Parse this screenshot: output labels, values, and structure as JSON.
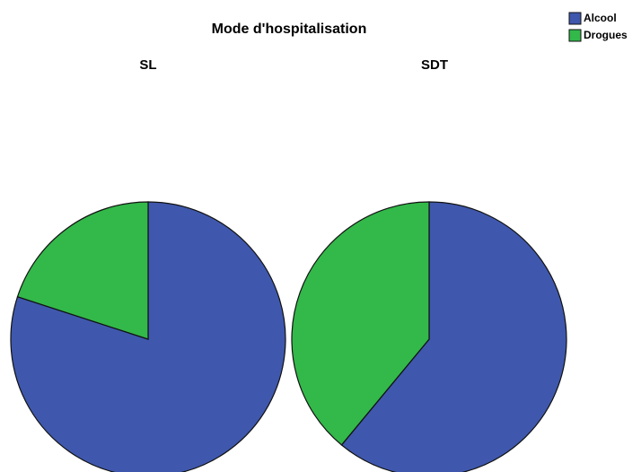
{
  "title": "Mode d'hospitalisation",
  "chart_data": [
    {
      "type": "pie",
      "title": "SL",
      "categories": [
        "Alcool",
        "Drogues"
      ],
      "values": [
        80,
        20
      ],
      "colors": [
        "#3f58ad",
        "#33b84a"
      ]
    },
    {
      "type": "pie",
      "title": "SDT",
      "categories": [
        "Alcool",
        "Drogues"
      ],
      "values": [
        61,
        39
      ],
      "colors": [
        "#3f58ad",
        "#33b84a"
      ]
    }
  ]
}
